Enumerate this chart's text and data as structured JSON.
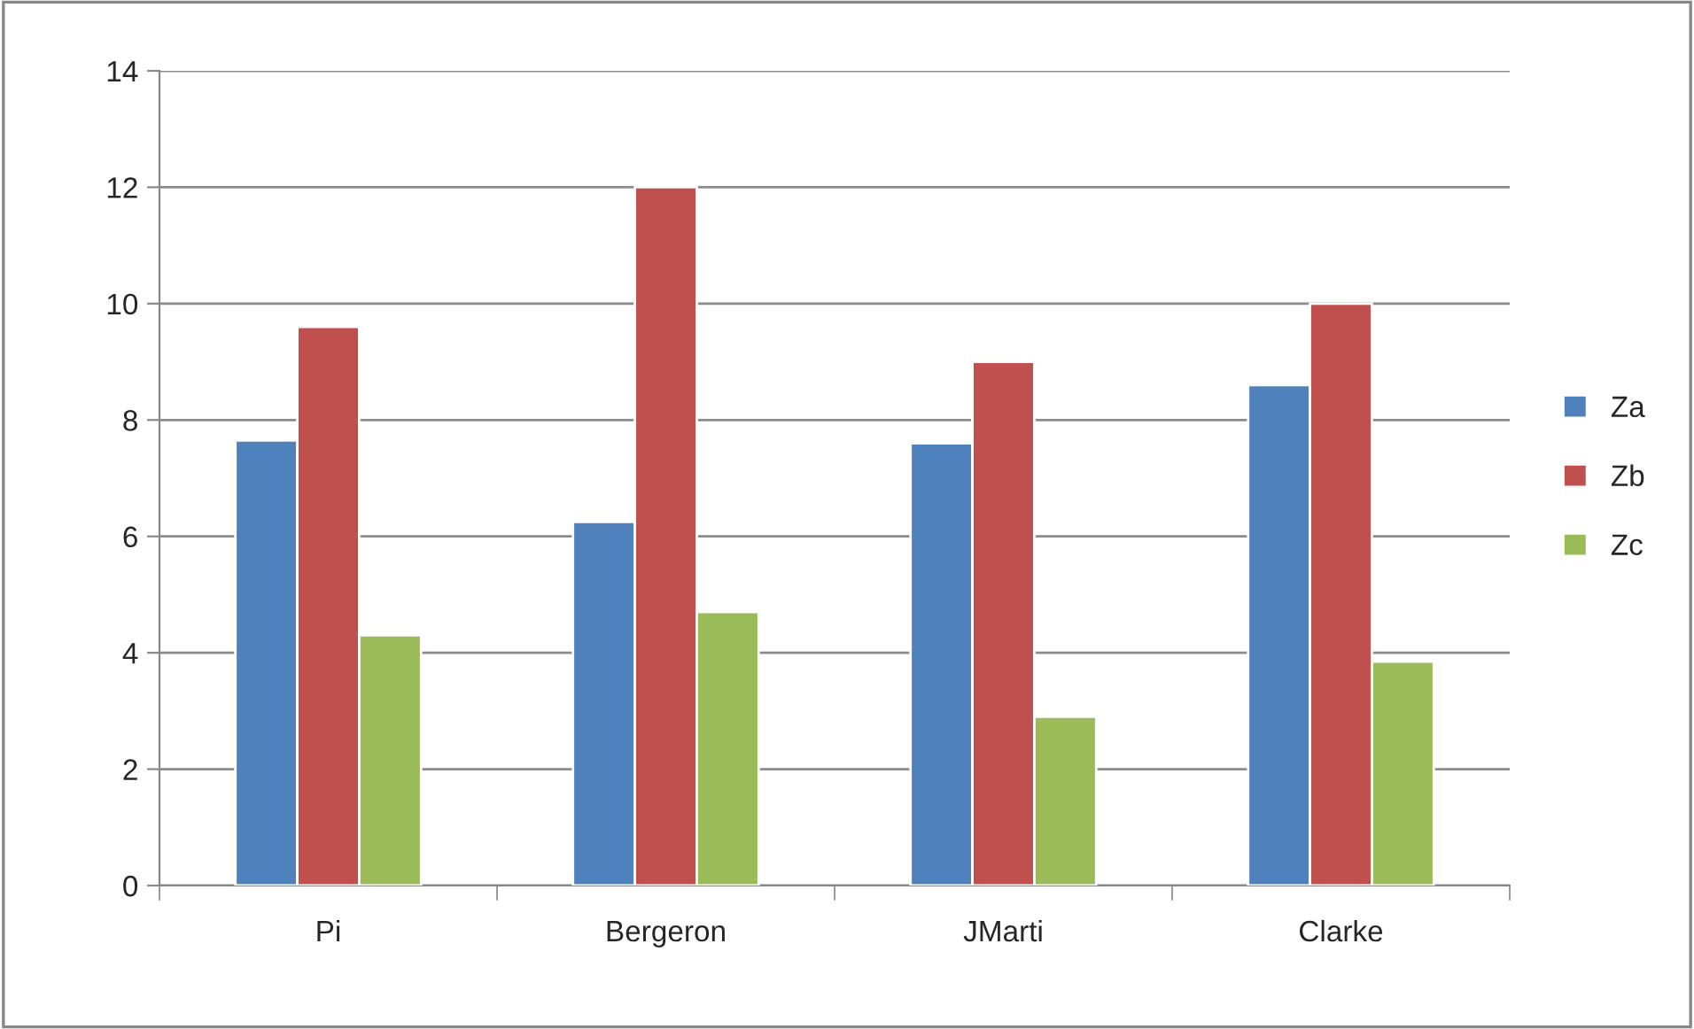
{
  "chart_data": {
    "type": "bar",
    "categories": [
      "Pi",
      "Bergeron",
      "JMarti",
      "Clarke"
    ],
    "series": [
      {
        "name": "Za",
        "color": "#4f81bd",
        "values": [
          7.65,
          6.25,
          7.6,
          8.6
        ]
      },
      {
        "name": "Zb",
        "color": "#c0504d",
        "values": [
          9.6,
          12,
          9,
          10
        ]
      },
      {
        "name": "Zc",
        "color": "#9bbb59",
        "values": [
          4.3,
          4.7,
          2.9,
          3.85
        ]
      }
    ],
    "ylim": [
      0,
      14
    ],
    "yticks": [
      0,
      2,
      4,
      6,
      8,
      10,
      12,
      14
    ],
    "grid": "y",
    "legend": "right"
  }
}
